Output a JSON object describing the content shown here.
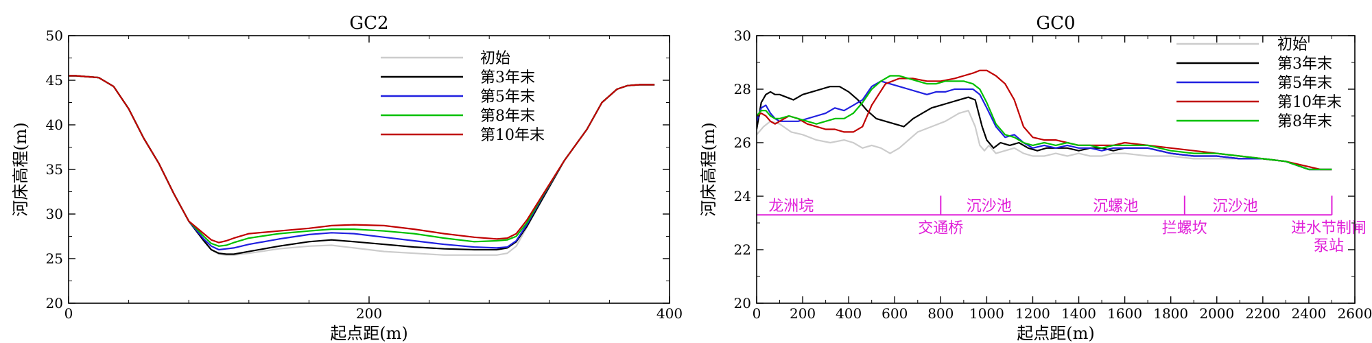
{
  "chart_data": [
    {
      "type": "line",
      "title": "GC2",
      "xlabel": "起点距(m)",
      "ylabel": "河床高程(m)",
      "xlim": [
        0,
        400
      ],
      "ylim": [
        20,
        50
      ],
      "xticks": [
        0,
        200,
        400
      ],
      "yticks": [
        20,
        25,
        30,
        35,
        40,
        45,
        50
      ],
      "legend_position": "top-right",
      "series": [
        {
          "name": "初始",
          "color": "#cccccc",
          "x": [
            0,
            5,
            20,
            30,
            40,
            50,
            60,
            70,
            80,
            90,
            95,
            100,
            105,
            110,
            120,
            140,
            160,
            175,
            190,
            210,
            230,
            250,
            270,
            285,
            292,
            298,
            305,
            315,
            330,
            345,
            355,
            365,
            372,
            380,
            385,
            390
          ],
          "y": [
            45.5,
            45.5,
            45.3,
            44.3,
            41.8,
            38.5,
            35.7,
            32.3,
            29.2,
            27.0,
            26.0,
            25.5,
            25.4,
            25.4,
            25.6,
            26.1,
            26.4,
            26.5,
            26.2,
            25.8,
            25.6,
            25.4,
            25.4,
            25.4,
            25.6,
            26.4,
            28.5,
            31.5,
            36.0,
            39.5,
            42.5,
            44.0,
            44.4,
            44.5,
            44.5,
            44.5
          ]
        },
        {
          "name": "第3年末",
          "color": "#000000",
          "x": [
            0,
            5,
            20,
            30,
            40,
            50,
            60,
            70,
            80,
            90,
            95,
            100,
            105,
            110,
            120,
            140,
            160,
            175,
            190,
            210,
            230,
            250,
            270,
            285,
            292,
            298,
            305,
            315,
            330,
            345,
            355,
            365,
            372,
            380,
            385,
            390
          ],
          "y": [
            45.5,
            45.5,
            45.3,
            44.3,
            41.8,
            38.5,
            35.7,
            32.3,
            29.2,
            27.0,
            26.0,
            25.6,
            25.5,
            25.5,
            25.8,
            26.4,
            26.9,
            27.1,
            26.9,
            26.6,
            26.3,
            26.1,
            26.0,
            26.0,
            26.2,
            26.9,
            28.6,
            31.6,
            36.0,
            39.5,
            42.5,
            44.0,
            44.4,
            44.5,
            44.5,
            44.5
          ]
        },
        {
          "name": "第5年末",
          "color": "#2020e0",
          "x": [
            0,
            5,
            20,
            30,
            40,
            50,
            60,
            70,
            80,
            90,
            95,
            100,
            105,
            110,
            120,
            140,
            160,
            175,
            190,
            210,
            230,
            250,
            270,
            285,
            292,
            298,
            305,
            315,
            330,
            345,
            355,
            365,
            372,
            380,
            385,
            390
          ],
          "y": [
            45.5,
            45.5,
            45.3,
            44.3,
            41.8,
            38.5,
            35.7,
            32.3,
            29.2,
            27.2,
            26.4,
            26.0,
            26.1,
            26.2,
            26.6,
            27.2,
            27.7,
            27.9,
            27.8,
            27.4,
            27.0,
            26.6,
            26.3,
            26.2,
            26.3,
            27.0,
            28.8,
            31.8,
            36.0,
            39.5,
            42.5,
            44.0,
            44.4,
            44.5,
            44.5,
            44.5
          ]
        },
        {
          "name": "第8年末",
          "color": "#00c000",
          "x": [
            0,
            5,
            20,
            30,
            40,
            50,
            60,
            70,
            80,
            90,
            95,
            100,
            105,
            110,
            120,
            140,
            160,
            175,
            190,
            210,
            230,
            250,
            270,
            285,
            292,
            298,
            305,
            315,
            330,
            345,
            355,
            365,
            372,
            380,
            385,
            390
          ],
          "y": [
            45.5,
            45.5,
            45.3,
            44.3,
            41.8,
            38.5,
            35.7,
            32.3,
            29.2,
            27.5,
            26.7,
            26.4,
            26.5,
            26.8,
            27.3,
            27.8,
            28.1,
            28.3,
            28.3,
            28.1,
            27.8,
            27.3,
            26.9,
            27.0,
            27.1,
            27.5,
            29.0,
            31.9,
            36.0,
            39.5,
            42.5,
            44.0,
            44.4,
            44.5,
            44.5,
            44.5
          ]
        },
        {
          "name": "第10年末",
          "color": "#c00000",
          "x": [
            0,
            5,
            20,
            30,
            40,
            50,
            60,
            70,
            80,
            90,
            95,
            100,
            105,
            110,
            120,
            140,
            160,
            175,
            190,
            210,
            230,
            250,
            270,
            285,
            292,
            298,
            305,
            315,
            330,
            345,
            355,
            365,
            372,
            380,
            385,
            390
          ],
          "y": [
            45.5,
            45.5,
            45.3,
            44.3,
            41.8,
            38.5,
            35.7,
            32.3,
            29.2,
            27.8,
            27.1,
            26.8,
            27.0,
            27.3,
            27.8,
            28.1,
            28.4,
            28.7,
            28.8,
            28.7,
            28.3,
            27.8,
            27.4,
            27.2,
            27.3,
            27.8,
            29.3,
            32.0,
            36.0,
            39.5,
            42.5,
            44.0,
            44.4,
            44.5,
            44.5,
            44.5
          ]
        }
      ]
    },
    {
      "type": "line",
      "title": "GC0",
      "xlabel": "起点距(m)",
      "ylabel": "河床高程(m)",
      "xlim": [
        0,
        2600
      ],
      "ylim": [
        20,
        30
      ],
      "xticks": [
        0,
        200,
        400,
        600,
        800,
        1000,
        1200,
        1400,
        1600,
        1800,
        2000,
        2200,
        2400,
        2600
      ],
      "yticks": [
        20,
        22,
        24,
        26,
        28,
        30
      ],
      "legend_position": "top-right",
      "series": [
        {
          "name": "初始",
          "color": "#cccccc",
          "x": [
            0,
            30,
            60,
            100,
            150,
            200,
            260,
            320,
            380,
            420,
            460,
            500,
            540,
            580,
            620,
            660,
            700,
            760,
            820,
            880,
            920,
            950,
            970,
            990,
            1010,
            1040,
            1080,
            1120,
            1160,
            1200,
            1250,
            1300,
            1350,
            1400,
            1450,
            1500,
            1550,
            1600,
            1700,
            1800,
            1900,
            2000,
            2100,
            2200,
            2300,
            2400,
            2450,
            2500
          ],
          "y": [
            26.3,
            26.6,
            26.8,
            26.7,
            26.4,
            26.3,
            26.1,
            26.0,
            26.1,
            26.0,
            25.8,
            25.9,
            25.8,
            25.6,
            25.8,
            26.1,
            26.4,
            26.6,
            26.8,
            27.1,
            27.2,
            26.6,
            25.9,
            25.7,
            25.9,
            25.6,
            25.7,
            25.8,
            25.6,
            25.5,
            25.5,
            25.6,
            25.5,
            25.6,
            25.5,
            25.5,
            25.6,
            25.6,
            25.5,
            25.5,
            25.4,
            25.4,
            25.4,
            25.4,
            25.3,
            25.0,
            25.0,
            25.0
          ]
        },
        {
          "name": "第3年末",
          "color": "#000000",
          "x": [
            0,
            20,
            40,
            60,
            80,
            100,
            130,
            160,
            200,
            240,
            280,
            320,
            360,
            400,
            440,
            480,
            520,
            560,
            600,
            640,
            680,
            720,
            760,
            800,
            840,
            880,
            920,
            950,
            980,
            1000,
            1030,
            1060,
            1100,
            1140,
            1180,
            1220,
            1260,
            1300,
            1350,
            1400,
            1450,
            1500,
            1550,
            1600,
            1700,
            1800,
            1900,
            2000,
            2100,
            2200,
            2300,
            2400,
            2450,
            2500
          ],
          "y": [
            26.5,
            27.5,
            27.8,
            27.9,
            27.8,
            27.8,
            27.7,
            27.6,
            27.8,
            27.9,
            28.0,
            28.1,
            28.1,
            27.9,
            27.6,
            27.2,
            26.9,
            26.8,
            26.7,
            26.6,
            26.9,
            27.1,
            27.3,
            27.4,
            27.5,
            27.6,
            27.7,
            27.6,
            26.6,
            26.1,
            25.8,
            26.0,
            25.9,
            26.0,
            25.8,
            25.7,
            25.8,
            25.8,
            25.8,
            25.7,
            25.8,
            25.8,
            25.7,
            25.8,
            25.8,
            25.6,
            25.5,
            25.5,
            25.4,
            25.4,
            25.3,
            25.0,
            25.0,
            25.0
          ]
        },
        {
          "name": "第5年末",
          "color": "#2020e0",
          "x": [
            0,
            20,
            40,
            60,
            80,
            100,
            140,
            180,
            220,
            260,
            300,
            340,
            380,
            420,
            460,
            500,
            540,
            580,
            620,
            660,
            700,
            740,
            780,
            820,
            860,
            900,
            940,
            970,
            1000,
            1040,
            1080,
            1120,
            1160,
            1200,
            1250,
            1300,
            1350,
            1400,
            1450,
            1500,
            1550,
            1600,
            1700,
            1800,
            1900,
            2000,
            2100,
            2200,
            2300,
            2400,
            2450,
            2500
          ],
          "y": [
            26.8,
            27.3,
            27.4,
            27.1,
            26.9,
            26.8,
            26.8,
            26.8,
            26.9,
            27.0,
            27.1,
            27.3,
            27.2,
            27.4,
            27.6,
            28.1,
            28.3,
            28.2,
            28.1,
            28.0,
            27.9,
            27.8,
            27.9,
            27.9,
            28.0,
            28.0,
            28.0,
            27.8,
            27.3,
            26.6,
            26.2,
            26.3,
            26.0,
            25.8,
            25.9,
            25.8,
            25.9,
            25.8,
            25.8,
            25.7,
            25.8,
            25.8,
            25.8,
            25.6,
            25.5,
            25.5,
            25.4,
            25.4,
            25.3,
            25.0,
            25.0,
            25.0
          ]
        },
        {
          "name": "第10年末",
          "color": "#c00000",
          "x": [
            0,
            20,
            40,
            60,
            80,
            100,
            140,
            180,
            220,
            260,
            300,
            340,
            380,
            420,
            460,
            500,
            560,
            620,
            680,
            740,
            800,
            860,
            900,
            940,
            970,
            1000,
            1040,
            1080,
            1120,
            1160,
            1200,
            1250,
            1300,
            1350,
            1400,
            1450,
            1500,
            1550,
            1600,
            1700,
            1800,
            1900,
            2000,
            2100,
            2200,
            2300,
            2400,
            2450,
            2500
          ],
          "y": [
            27.0,
            27.1,
            27.0,
            26.8,
            26.7,
            26.8,
            27.0,
            26.9,
            26.7,
            26.6,
            26.5,
            26.5,
            26.4,
            26.4,
            26.6,
            27.4,
            28.2,
            28.4,
            28.4,
            28.3,
            28.3,
            28.4,
            28.5,
            28.6,
            28.7,
            28.7,
            28.5,
            28.2,
            27.6,
            26.6,
            26.2,
            26.1,
            26.1,
            26.0,
            25.9,
            25.9,
            25.9,
            25.9,
            26.0,
            25.9,
            25.8,
            25.7,
            25.6,
            25.5,
            25.4,
            25.3,
            25.1,
            25.0,
            25.0
          ]
        },
        {
          "name": "第8年末",
          "color": "#00c000",
          "x": [
            0,
            20,
            40,
            60,
            80,
            100,
            140,
            180,
            220,
            260,
            300,
            340,
            380,
            420,
            460,
            500,
            540,
            580,
            620,
            660,
            700,
            740,
            780,
            820,
            860,
            900,
            940,
            970,
            1000,
            1040,
            1080,
            1120,
            1160,
            1200,
            1250,
            1300,
            1350,
            1400,
            1450,
            1500,
            1550,
            1600,
            1700,
            1800,
            1900,
            2000,
            2100,
            2200,
            2300,
            2400,
            2450,
            2500
          ],
          "y": [
            27.0,
            27.2,
            27.2,
            27.0,
            26.9,
            26.9,
            27.0,
            26.9,
            26.8,
            26.7,
            26.8,
            26.9,
            26.9,
            27.1,
            27.5,
            28.0,
            28.3,
            28.5,
            28.5,
            28.4,
            28.3,
            28.2,
            28.2,
            28.3,
            28.3,
            28.3,
            28.2,
            28.0,
            27.5,
            26.7,
            26.3,
            26.2,
            26.0,
            25.9,
            26.0,
            25.9,
            26.0,
            25.9,
            25.9,
            25.8,
            25.9,
            25.9,
            25.9,
            25.7,
            25.6,
            25.6,
            25.5,
            25.4,
            25.3,
            25.0,
            25.0,
            25.0
          ]
        }
      ],
      "annotations": {
        "line_y": 23.3,
        "line_x": [
          0,
          2500
        ],
        "dividers": [
          800,
          1860,
          2500
        ],
        "labels_above": [
          {
            "text": "龙洲垸",
            "x": 150
          },
          {
            "text": "沉沙池",
            "x": 1010
          },
          {
            "text": "沉螺池",
            "x": 1560
          },
          {
            "text": "沉沙池",
            "x": 2080
          }
        ],
        "labels_below": [
          {
            "text": "交通桥",
            "x": 800,
            "row": 1
          },
          {
            "text": "拦螺坎",
            "x": 1860,
            "row": 1
          },
          {
            "text": "进水节制闸",
            "x": 2490,
            "row": 1
          },
          {
            "text": "泵站",
            "x": 2490,
            "row": 2
          }
        ]
      }
    }
  ]
}
